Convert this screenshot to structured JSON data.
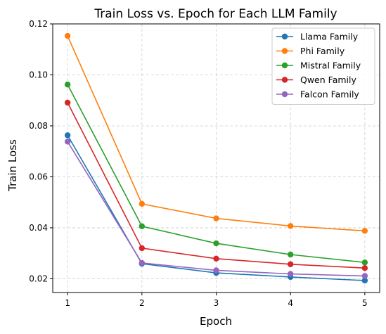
{
  "chart_data": {
    "type": "line",
    "title": "Train Loss vs. Epoch for Each LLM Family",
    "xlabel": "Epoch",
    "ylabel": "Train Loss",
    "x": [
      1,
      2,
      3,
      4,
      5
    ],
    "x_ticks": [
      "1",
      "2",
      "3",
      "4",
      "5"
    ],
    "y_ticks": [
      "0.02",
      "0.04",
      "0.06",
      "0.08",
      "0.10",
      "0.12"
    ],
    "xlim": [
      0.8,
      5.2
    ],
    "ylim": [
      0.0146,
      0.12
    ],
    "grid": true,
    "legend_position": "top-right",
    "series": [
      {
        "name": "Llama Family",
        "color": "#1f77b4",
        "values": [
          0.0763,
          0.0259,
          0.0223,
          0.0207,
          0.0193
        ]
      },
      {
        "name": "Phi Family",
        "color": "#ff7f0e",
        "values": [
          0.1153,
          0.0494,
          0.0437,
          0.0407,
          0.0388
        ]
      },
      {
        "name": "Mistral Family",
        "color": "#2ca02c",
        "values": [
          0.0962,
          0.0406,
          0.0339,
          0.0295,
          0.0264
        ]
      },
      {
        "name": "Qwen Family",
        "color": "#d62728",
        "values": [
          0.0891,
          0.032,
          0.0279,
          0.0257,
          0.0242
        ]
      },
      {
        "name": "Falcon Family",
        "color": "#9467bd",
        "values": [
          0.0738,
          0.0262,
          0.0233,
          0.0219,
          0.0211
        ]
      }
    ]
  }
}
